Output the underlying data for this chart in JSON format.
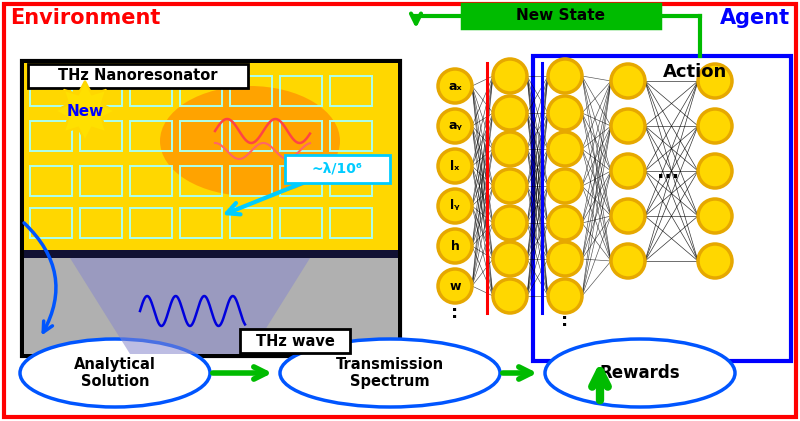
{
  "bg_color": "#ffffff",
  "env_label": "Environment",
  "env_color": "#ff0000",
  "agent_label": "Agent",
  "agent_color": "#0000ff",
  "new_state_label": "New State",
  "new_state_color": "#00bb00",
  "action_label": "Action",
  "thz_nano_label": "THz Nanoresonator",
  "thz_wave_label": "THz wave",
  "lambda_label": "~λ/10⁶",
  "input_nodes": [
    "aₓ",
    "aᵧ",
    "lₓ",
    "lᵧ",
    "h",
    "w"
  ],
  "analytical_label": "Analytical\nSolution",
  "transmission_label": "Transmission\nSpectrum",
  "rewards_label": "Rewards",
  "new_label": "New",
  "dots_horiz": "...",
  "dots_vert": ":",
  "yellow": "#FFD700",
  "dark_yellow": "#E6A800",
  "orange": "#FF8C00",
  "green_arrow": "#00bb00",
  "blue_border": "#0055ff",
  "cyan_box": "#00ccff",
  "white": "#ffffff",
  "black": "#000000",
  "gray": "#A8A8A8",
  "dark_navy": "#111133",
  "purple_beam": "#7777CC",
  "red_line": "#ff0000",
  "blue_line": "#0000ff",
  "blue_arrow": "#0055ff",
  "starburst_yellow": "#FFE000",
  "starburst_edge": "#FFD700"
}
